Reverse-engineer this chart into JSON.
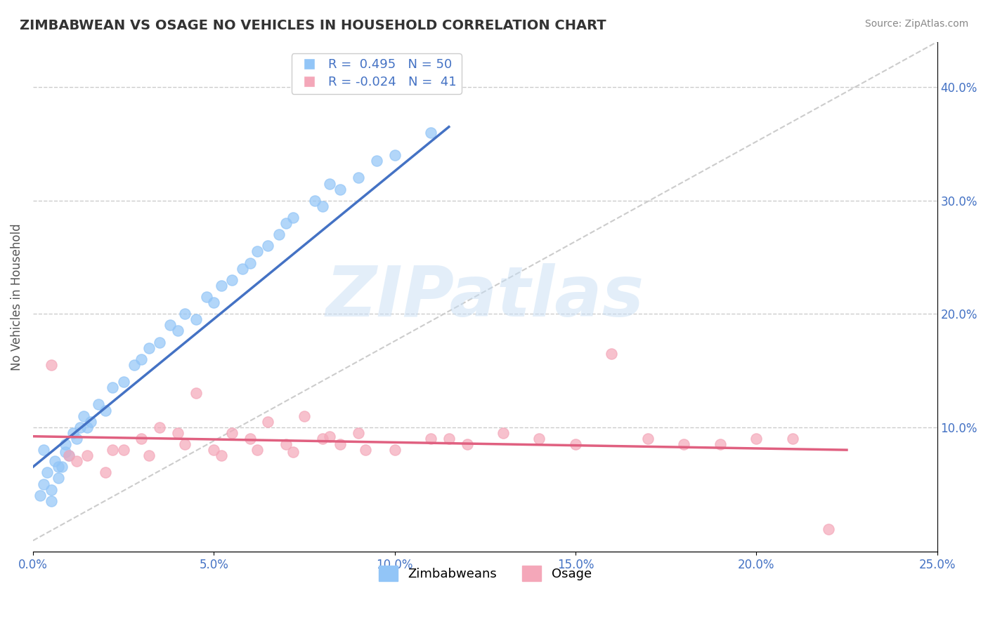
{
  "title": "ZIMBABWEAN VS OSAGE NO VEHICLES IN HOUSEHOLD CORRELATION CHART",
  "source_text": "Source: ZipAtlas.com",
  "xlabel": "",
  "ylabel": "No Vehicles in Household",
  "xlim": [
    0.0,
    0.25
  ],
  "ylim": [
    -0.01,
    0.44
  ],
  "xticks": [
    0.0,
    0.05,
    0.1,
    0.15,
    0.2,
    0.25
  ],
  "xtick_labels": [
    "0.0%",
    "5.0%",
    "10.0%",
    "15.0%",
    "20.0%",
    "25.0%"
  ],
  "yticks_right": [
    0.1,
    0.2,
    0.3,
    0.4
  ],
  "ytick_labels_right": [
    "10.0%",
    "20.0%",
    "30.0%",
    "40.0%"
  ],
  "blue_R": 0.495,
  "blue_N": 50,
  "pink_R": -0.024,
  "pink_N": 41,
  "blue_color": "#92c5f7",
  "pink_color": "#f4a7b9",
  "blue_line_color": "#4472c4",
  "pink_line_color": "#e06080",
  "watermark_color": "#c8dff5",
  "background_color": "#ffffff",
  "legend_label_blue": "Zimbabweans",
  "legend_label_pink": "Osage",
  "blue_scatter_x": [
    0.005,
    0.003,
    0.008,
    0.01,
    0.012,
    0.015,
    0.007,
    0.004,
    0.006,
    0.009,
    0.002,
    0.011,
    0.014,
    0.016,
    0.02,
    0.025,
    0.03,
    0.035,
    0.04,
    0.045,
    0.05,
    0.055,
    0.06,
    0.065,
    0.07,
    0.08,
    0.085,
    0.09,
    0.1,
    0.11,
    0.003,
    0.005,
    0.007,
    0.009,
    0.013,
    0.018,
    0.022,
    0.028,
    0.032,
    0.038,
    0.042,
    0.048,
    0.052,
    0.058,
    0.062,
    0.068,
    0.072,
    0.078,
    0.082,
    0.095
  ],
  "blue_scatter_y": [
    0.035,
    0.08,
    0.065,
    0.075,
    0.09,
    0.1,
    0.055,
    0.06,
    0.07,
    0.085,
    0.04,
    0.095,
    0.11,
    0.105,
    0.115,
    0.14,
    0.16,
    0.175,
    0.185,
    0.195,
    0.21,
    0.23,
    0.245,
    0.26,
    0.28,
    0.295,
    0.31,
    0.32,
    0.34,
    0.36,
    0.05,
    0.045,
    0.065,
    0.078,
    0.1,
    0.12,
    0.135,
    0.155,
    0.17,
    0.19,
    0.2,
    0.215,
    0.225,
    0.24,
    0.255,
    0.27,
    0.285,
    0.3,
    0.315,
    0.335
  ],
  "pink_scatter_x": [
    0.005,
    0.01,
    0.015,
    0.02,
    0.025,
    0.03,
    0.035,
    0.04,
    0.045,
    0.05,
    0.055,
    0.06,
    0.065,
    0.07,
    0.075,
    0.08,
    0.085,
    0.09,
    0.1,
    0.11,
    0.12,
    0.13,
    0.14,
    0.15,
    0.16,
    0.17,
    0.18,
    0.19,
    0.2,
    0.21,
    0.012,
    0.022,
    0.032,
    0.042,
    0.052,
    0.062,
    0.072,
    0.082,
    0.092,
    0.115,
    0.22
  ],
  "pink_scatter_y": [
    0.155,
    0.075,
    0.075,
    0.06,
    0.08,
    0.09,
    0.1,
    0.095,
    0.13,
    0.08,
    0.095,
    0.09,
    0.105,
    0.085,
    0.11,
    0.09,
    0.085,
    0.095,
    0.08,
    0.09,
    0.085,
    0.095,
    0.09,
    0.085,
    0.165,
    0.09,
    0.085,
    0.085,
    0.09,
    0.09,
    0.07,
    0.08,
    0.075,
    0.085,
    0.075,
    0.08,
    0.078,
    0.092,
    0.08,
    0.09,
    0.01
  ],
  "blue_trend_x": [
    0.0,
    0.115
  ],
  "blue_trend_y": [
    0.065,
    0.365
  ],
  "pink_trend_x": [
    0.0,
    0.225
  ],
  "pink_trend_y": [
    0.092,
    0.08
  ],
  "diag_line_x": [
    0.0,
    0.25
  ],
  "diag_line_y": [
    0.0,
    0.44
  ]
}
